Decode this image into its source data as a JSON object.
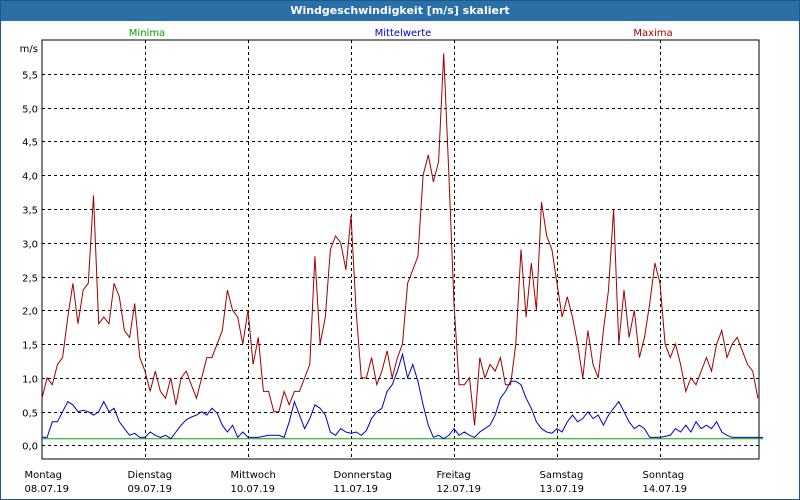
{
  "window": {
    "title": "Windgeschwindigkeit [m/s] skaliert"
  },
  "colors": {
    "minima": "#00a000",
    "mittelwerte": "#0000c8",
    "maxima": "#a00000",
    "titlebar": "#2a6fa8"
  },
  "chart_data": {
    "type": "line",
    "ylabel": "m/s",
    "ylim": [
      -0.2,
      6.0
    ],
    "yticks": [
      "0,0",
      "0,5",
      "1,0",
      "1,5",
      "2,0",
      "2,5",
      "3,0",
      "3,5",
      "4,0",
      "4,5",
      "5,0",
      "5,5"
    ],
    "ytick_values": [
      0.0,
      0.5,
      1.0,
      1.5,
      2.0,
      2.5,
      3.0,
      3.5,
      4.0,
      4.5,
      5.0,
      5.5
    ],
    "xlim": [
      0,
      7
    ],
    "grid": true,
    "days": [
      {
        "name": "Montag",
        "date": "08.07.19"
      },
      {
        "name": "Dienstag",
        "date": "09.07.19"
      },
      {
        "name": "Mittwoch",
        "date": "10.07.19"
      },
      {
        "name": "Donnerstag",
        "date": "11.07.19"
      },
      {
        "name": "Freitag",
        "date": "12.07.19"
      },
      {
        "name": "Samstag",
        "date": "13.07.19"
      },
      {
        "name": "Sonntag",
        "date": "14.07.19"
      }
    ],
    "series": [
      {
        "name": "Minima",
        "color": "#00a000",
        "points": [
          [
            0,
            0.1
          ],
          [
            7,
            0.1
          ]
        ]
      },
      {
        "name": "Mittelwerte",
        "color": "#0000c8",
        "points": [
          [
            0,
            0.12
          ],
          [
            0.05,
            0.12
          ],
          [
            0.1,
            0.35
          ],
          [
            0.15,
            0.35
          ],
          [
            0.2,
            0.5
          ],
          [
            0.25,
            0.65
          ],
          [
            0.3,
            0.6
          ],
          [
            0.35,
            0.5
          ],
          [
            0.4,
            0.52
          ],
          [
            0.45,
            0.5
          ],
          [
            0.5,
            0.45
          ],
          [
            0.55,
            0.5
          ],
          [
            0.6,
            0.65
          ],
          [
            0.65,
            0.5
          ],
          [
            0.7,
            0.55
          ],
          [
            0.75,
            0.35
          ],
          [
            0.8,
            0.25
          ],
          [
            0.85,
            0.15
          ],
          [
            0.9,
            0.18
          ],
          [
            0.95,
            0.12
          ],
          [
            1.0,
            0.12
          ],
          [
            1.05,
            0.2
          ],
          [
            1.1,
            0.15
          ],
          [
            1.15,
            0.12
          ],
          [
            1.2,
            0.15
          ],
          [
            1.25,
            0.1
          ],
          [
            1.3,
            0.2
          ],
          [
            1.35,
            0.3
          ],
          [
            1.4,
            0.38
          ],
          [
            1.45,
            0.42
          ],
          [
            1.5,
            0.45
          ],
          [
            1.55,
            0.5
          ],
          [
            1.6,
            0.45
          ],
          [
            1.65,
            0.55
          ],
          [
            1.7,
            0.48
          ],
          [
            1.75,
            0.3
          ],
          [
            1.8,
            0.2
          ],
          [
            1.85,
            0.3
          ],
          [
            1.9,
            0.12
          ],
          [
            1.95,
            0.2
          ],
          [
            2.0,
            0.12
          ],
          [
            2.1,
            0.12
          ],
          [
            2.2,
            0.15
          ],
          [
            2.3,
            0.15
          ],
          [
            2.35,
            0.12
          ],
          [
            2.4,
            0.35
          ],
          [
            2.45,
            0.65
          ],
          [
            2.5,
            0.45
          ],
          [
            2.55,
            0.25
          ],
          [
            2.6,
            0.4
          ],
          [
            2.65,
            0.6
          ],
          [
            2.7,
            0.55
          ],
          [
            2.75,
            0.45
          ],
          [
            2.8,
            0.2
          ],
          [
            2.85,
            0.15
          ],
          [
            2.9,
            0.25
          ],
          [
            2.95,
            0.2
          ],
          [
            3.0,
            0.18
          ],
          [
            3.05,
            0.2
          ],
          [
            3.1,
            0.15
          ],
          [
            3.15,
            0.22
          ],
          [
            3.2,
            0.4
          ],
          [
            3.25,
            0.5
          ],
          [
            3.3,
            0.55
          ],
          [
            3.35,
            0.8
          ],
          [
            3.4,
            0.9
          ],
          [
            3.45,
            1.1
          ],
          [
            3.5,
            1.35
          ],
          [
            3.55,
            1.0
          ],
          [
            3.6,
            1.2
          ],
          [
            3.65,
            0.95
          ],
          [
            3.7,
            0.6
          ],
          [
            3.75,
            0.3
          ],
          [
            3.8,
            0.12
          ],
          [
            3.85,
            0.15
          ],
          [
            3.9,
            0.1
          ],
          [
            3.95,
            0.15
          ],
          [
            4.0,
            0.25
          ],
          [
            4.05,
            0.15
          ],
          [
            4.1,
            0.2
          ],
          [
            4.15,
            0.15
          ],
          [
            4.2,
            0.12
          ],
          [
            4.25,
            0.2
          ],
          [
            4.3,
            0.25
          ],
          [
            4.35,
            0.3
          ],
          [
            4.4,
            0.45
          ],
          [
            4.45,
            0.7
          ],
          [
            4.5,
            0.8
          ],
          [
            4.55,
            0.95
          ],
          [
            4.6,
            0.95
          ],
          [
            4.65,
            0.9
          ],
          [
            4.7,
            0.7
          ],
          [
            4.75,
            0.55
          ],
          [
            4.8,
            0.35
          ],
          [
            4.85,
            0.25
          ],
          [
            4.9,
            0.2
          ],
          [
            4.95,
            0.18
          ],
          [
            5.0,
            0.25
          ],
          [
            5.05,
            0.2
          ],
          [
            5.1,
            0.35
          ],
          [
            5.15,
            0.45
          ],
          [
            5.2,
            0.35
          ],
          [
            5.25,
            0.4
          ],
          [
            5.3,
            0.5
          ],
          [
            5.35,
            0.4
          ],
          [
            5.4,
            0.45
          ],
          [
            5.45,
            0.3
          ],
          [
            5.5,
            0.45
          ],
          [
            5.55,
            0.55
          ],
          [
            5.6,
            0.65
          ],
          [
            5.65,
            0.5
          ],
          [
            5.7,
            0.35
          ],
          [
            5.75,
            0.25
          ],
          [
            5.8,
            0.3
          ],
          [
            5.85,
            0.25
          ],
          [
            5.9,
            0.12
          ],
          [
            6.0,
            0.12
          ],
          [
            6.1,
            0.15
          ],
          [
            6.15,
            0.25
          ],
          [
            6.2,
            0.2
          ],
          [
            6.25,
            0.3
          ],
          [
            6.3,
            0.2
          ],
          [
            6.35,
            0.35
          ],
          [
            6.4,
            0.25
          ],
          [
            6.45,
            0.3
          ],
          [
            6.5,
            0.25
          ],
          [
            6.55,
            0.35
          ],
          [
            6.6,
            0.2
          ],
          [
            6.65,
            0.15
          ],
          [
            6.7,
            0.12
          ],
          [
            7.0,
            0.12
          ]
        ]
      },
      {
        "name": "Maxima",
        "color": "#a00000",
        "points": [
          [
            0,
            0.7
          ],
          [
            0.05,
            1.0
          ],
          [
            0.1,
            0.9
          ],
          [
            0.15,
            1.2
          ],
          [
            0.2,
            1.3
          ],
          [
            0.25,
            1.9
          ],
          [
            0.3,
            2.4
          ],
          [
            0.35,
            1.8
          ],
          [
            0.4,
            2.3
          ],
          [
            0.45,
            2.4
          ],
          [
            0.5,
            3.7
          ],
          [
            0.55,
            1.8
          ],
          [
            0.6,
            1.9
          ],
          [
            0.65,
            1.8
          ],
          [
            0.7,
            2.4
          ],
          [
            0.75,
            2.2
          ],
          [
            0.8,
            1.7
          ],
          [
            0.85,
            1.6
          ],
          [
            0.9,
            2.1
          ],
          [
            0.95,
            1.3
          ],
          [
            1.0,
            1.1
          ],
          [
            1.05,
            0.8
          ],
          [
            1.1,
            1.1
          ],
          [
            1.15,
            0.8
          ],
          [
            1.2,
            0.7
          ],
          [
            1.25,
            1.0
          ],
          [
            1.3,
            0.6
          ],
          [
            1.35,
            1.0
          ],
          [
            1.4,
            1.1
          ],
          [
            1.45,
            0.9
          ],
          [
            1.5,
            0.7
          ],
          [
            1.55,
            1.0
          ],
          [
            1.6,
            1.3
          ],
          [
            1.65,
            1.3
          ],
          [
            1.7,
            1.5
          ],
          [
            1.75,
            1.7
          ],
          [
            1.8,
            2.3
          ],
          [
            1.85,
            2.0
          ],
          [
            1.9,
            1.9
          ],
          [
            1.95,
            1.5
          ],
          [
            2.0,
            2.0
          ],
          [
            2.05,
            1.2
          ],
          [
            2.1,
            1.6
          ],
          [
            2.15,
            0.8
          ],
          [
            2.2,
            0.8
          ],
          [
            2.25,
            0.5
          ],
          [
            2.3,
            0.5
          ],
          [
            2.35,
            0.8
          ],
          [
            2.4,
            0.6
          ],
          [
            2.45,
            0.8
          ],
          [
            2.5,
            0.8
          ],
          [
            2.55,
            1.0
          ],
          [
            2.6,
            1.2
          ],
          [
            2.65,
            2.8
          ],
          [
            2.7,
            1.5
          ],
          [
            2.75,
            1.9
          ],
          [
            2.8,
            2.9
          ],
          [
            2.85,
            3.1
          ],
          [
            2.9,
            3.0
          ],
          [
            2.95,
            2.6
          ],
          [
            3.0,
            3.4
          ],
          [
            3.05,
            2.0
          ],
          [
            3.1,
            1.0
          ],
          [
            3.15,
            1.0
          ],
          [
            3.2,
            1.3
          ],
          [
            3.25,
            0.9
          ],
          [
            3.3,
            1.1
          ],
          [
            3.35,
            1.4
          ],
          [
            3.4,
            1.0
          ],
          [
            3.45,
            1.3
          ],
          [
            3.5,
            1.5
          ],
          [
            3.55,
            2.4
          ],
          [
            3.6,
            2.6
          ],
          [
            3.65,
            2.8
          ],
          [
            3.7,
            4.0
          ],
          [
            3.75,
            4.3
          ],
          [
            3.8,
            3.9
          ],
          [
            3.85,
            4.2
          ],
          [
            3.9,
            5.8
          ],
          [
            3.95,
            4.0
          ],
          [
            4.0,
            2.1
          ],
          [
            4.05,
            0.9
          ],
          [
            4.1,
            0.9
          ],
          [
            4.15,
            1.0
          ],
          [
            4.2,
            0.3
          ],
          [
            4.25,
            1.3
          ],
          [
            4.3,
            1.0
          ],
          [
            4.35,
            1.2
          ],
          [
            4.4,
            1.1
          ],
          [
            4.45,
            1.3
          ],
          [
            4.5,
            0.9
          ],
          [
            4.55,
            0.9
          ],
          [
            4.6,
            1.5
          ],
          [
            4.65,
            2.9
          ],
          [
            4.7,
            1.9
          ],
          [
            4.75,
            2.7
          ],
          [
            4.8,
            2.0
          ],
          [
            4.85,
            3.6
          ],
          [
            4.9,
            3.1
          ],
          [
            4.95,
            2.9
          ],
          [
            5.0,
            2.4
          ],
          [
            5.05,
            1.9
          ],
          [
            5.1,
            2.2
          ],
          [
            5.15,
            1.9
          ],
          [
            5.2,
            1.5
          ],
          [
            5.25,
            1.0
          ],
          [
            5.3,
            1.7
          ],
          [
            5.35,
            1.2
          ],
          [
            5.4,
            1.0
          ],
          [
            5.45,
            1.7
          ],
          [
            5.5,
            2.3
          ],
          [
            5.55,
            3.5
          ],
          [
            5.6,
            1.5
          ],
          [
            5.65,
            2.3
          ],
          [
            5.7,
            1.6
          ],
          [
            5.75,
            2.0
          ],
          [
            5.8,
            1.3
          ],
          [
            5.85,
            1.6
          ],
          [
            5.9,
            2.1
          ],
          [
            5.95,
            2.7
          ],
          [
            6.0,
            2.4
          ],
          [
            6.05,
            1.5
          ],
          [
            6.1,
            1.3
          ],
          [
            6.15,
            1.5
          ],
          [
            6.2,
            1.2
          ],
          [
            6.25,
            0.8
          ],
          [
            6.3,
            1.0
          ],
          [
            6.35,
            0.9
          ],
          [
            6.4,
            1.1
          ],
          [
            6.45,
            1.3
          ],
          [
            6.5,
            1.1
          ],
          [
            6.55,
            1.5
          ],
          [
            6.6,
            1.7
          ],
          [
            6.65,
            1.3
          ],
          [
            6.7,
            1.5
          ],
          [
            6.75,
            1.6
          ],
          [
            6.8,
            1.4
          ],
          [
            6.85,
            1.2
          ],
          [
            6.9,
            1.1
          ],
          [
            6.95,
            0.7
          ]
        ]
      }
    ]
  }
}
